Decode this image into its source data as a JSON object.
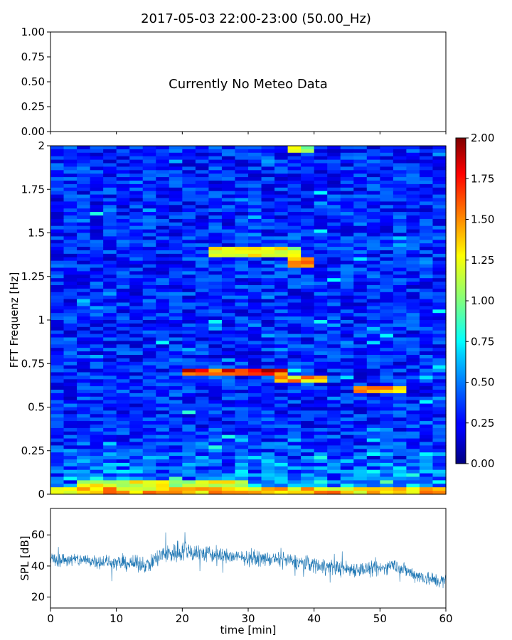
{
  "title": "2017-05-03 22:00-23:00 (50.00_Hz)",
  "chart_data": [
    {
      "panel": "meteo",
      "type": "line",
      "annotation": "Currently No Meteo Data",
      "ylim": [
        0,
        1
      ],
      "yticks": [
        "0.00",
        "0.25",
        "0.50",
        "0.75",
        "1.00"
      ],
      "xlim": [
        0,
        60
      ],
      "series": []
    },
    {
      "panel": "spectrogram",
      "type": "heatmap",
      "ylabel": "FFT Frequenz [Hz]",
      "ylim": [
        0,
        2
      ],
      "xlim": [
        0,
        60
      ],
      "yticks": [
        "0",
        "0.25",
        "0.5",
        "0.75",
        "1",
        "1.25",
        "1.5",
        "1.75",
        "2"
      ],
      "colormap": "jet",
      "colorbar": {
        "range": [
          0,
          2
        ],
        "ticks": [
          "0.00",
          "0.25",
          "0.50",
          "0.75",
          "1.00",
          "1.25",
          "1.50",
          "1.75",
          "2.00"
        ]
      },
      "background_level": 0.35,
      "features": [
        {
          "freq": 0.02,
          "t_start": 0,
          "t_end": 60,
          "level": 1.5
        },
        {
          "freq": 0.06,
          "t_start": 5,
          "t_end": 30,
          "level": 1.3
        },
        {
          "freq": 0.7,
          "t_start": 21,
          "t_end": 35,
          "level": 1.9
        },
        {
          "freq": 0.66,
          "t_start": 35,
          "t_end": 42,
          "level": 1.5
        },
        {
          "freq": 0.6,
          "t_start": 46,
          "t_end": 53,
          "level": 1.6
        },
        {
          "freq": 1.39,
          "t_start": 24,
          "t_end": 38,
          "level": 1.3
        },
        {
          "freq": 1.33,
          "t_start": 36,
          "t_end": 39,
          "level": 1.6
        },
        {
          "freq": 1.98,
          "t_start": 36,
          "t_end": 40,
          "level": 1.2
        }
      ]
    },
    {
      "panel": "spl",
      "type": "line",
      "ylabel": "SPL [dB]",
      "xlabel": "time [min]",
      "xlim": [
        0,
        60
      ],
      "ylim": [
        13,
        77
      ],
      "xticks": [
        "0",
        "10",
        "20",
        "30",
        "40",
        "50",
        "60"
      ],
      "yticks": [
        "20",
        "40",
        "60"
      ],
      "color": "#1f77b4",
      "series": [
        {
          "x": [
            0,
            5,
            10,
            15,
            17,
            20,
            25,
            30,
            35,
            40,
            45,
            50,
            52,
            55,
            58,
            60
          ],
          "mean": [
            44,
            44,
            42,
            41,
            47,
            50,
            47,
            45,
            44,
            41,
            38,
            38,
            41,
            35,
            31,
            30
          ],
          "spread": [
            6,
            6,
            6,
            7,
            9,
            10,
            7,
            6,
            6,
            7,
            7,
            6,
            6,
            6,
            7,
            6
          ]
        }
      ]
    }
  ]
}
